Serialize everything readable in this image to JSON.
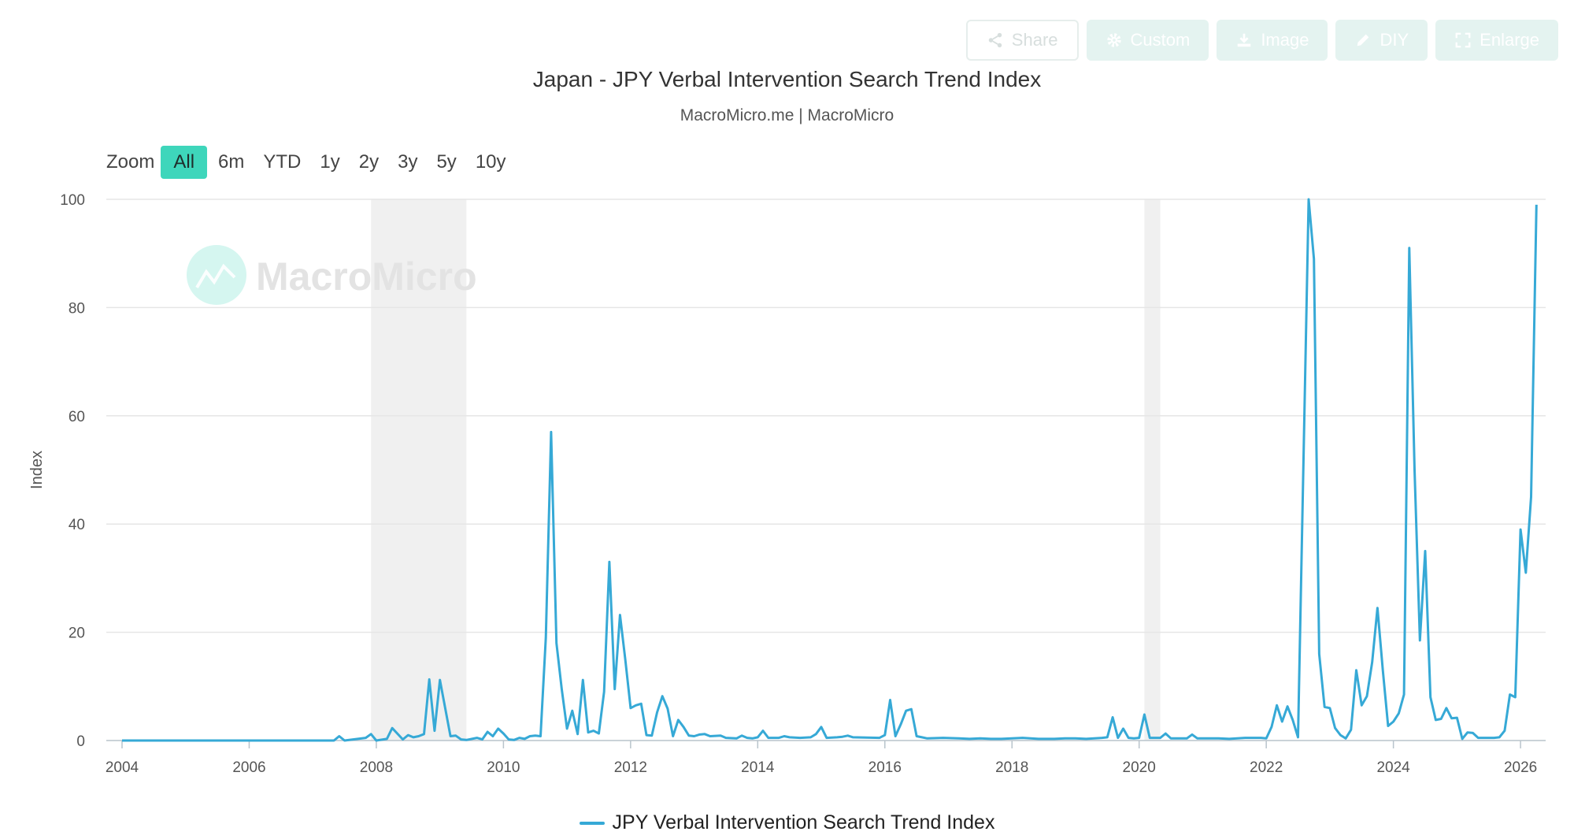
{
  "toolbar": {
    "share": "Share",
    "custom": "Custom",
    "image": "Image",
    "diy": "DIY",
    "enlarge": "Enlarge"
  },
  "zoom": {
    "label": "Zoom",
    "options": [
      "All",
      "6m",
      "YTD",
      "1y",
      "2y",
      "3y",
      "5y",
      "10y"
    ],
    "selected": "All"
  },
  "watermark": "MacroMicro",
  "colors": {
    "line": "#36a9d6",
    "accent": "#3ed6bb",
    "recession": "#f0f0f0"
  },
  "chart_data": {
    "type": "line",
    "title": "Japan - JPY Verbal Intervention Search Trend Index",
    "subtitle": "MacroMicro.me | MacroMicro",
    "ylabel": "Index",
    "xlabel": "",
    "ylim": [
      0,
      100
    ],
    "yticks": [
      "0",
      "20",
      "40",
      "60",
      "80",
      "100"
    ],
    "xlim": [
      "2004-01",
      "2026-05"
    ],
    "xticks": [
      "2004",
      "2006",
      "2008",
      "2010",
      "2012",
      "2014",
      "2016",
      "2018",
      "2020",
      "2022",
      "2024",
      "2026"
    ],
    "grid": true,
    "legend_position": "bottom-center",
    "shaded_periods": [
      [
        "2007-12",
        "2009-06"
      ],
      [
        "2020-02",
        "2020-05"
      ]
    ],
    "series": [
      {
        "name": "JPY Verbal Intervention Search Trend Index",
        "points": [
          [
            "2004-01",
            0
          ],
          [
            "2007-05",
            0
          ],
          [
            "2007-06",
            0.8
          ],
          [
            "2007-07",
            0
          ],
          [
            "2007-11",
            0.5
          ],
          [
            "2007-12",
            1.2
          ],
          [
            "2008-01",
            0
          ],
          [
            "2008-03",
            0.3
          ],
          [
            "2008-04",
            2.3
          ],
          [
            "2008-06",
            0.2
          ],
          [
            "2008-07",
            1.0
          ],
          [
            "2008-08",
            0.6
          ],
          [
            "2008-09",
            0.8
          ],
          [
            "2008-10",
            1.2
          ],
          [
            "2008-11",
            11.3
          ],
          [
            "2008-12",
            1.8
          ],
          [
            "2009-01",
            11.2
          ],
          [
            "2009-02",
            6.0
          ],
          [
            "2009-03",
            0.8
          ],
          [
            "2009-04",
            0.9
          ],
          [
            "2009-05",
            0.2
          ],
          [
            "2009-06",
            0.1
          ],
          [
            "2009-08",
            0.5
          ],
          [
            "2009-09",
            0.2
          ],
          [
            "2009-10",
            1.6
          ],
          [
            "2009-11",
            0.8
          ],
          [
            "2009-12",
            2.2
          ],
          [
            "2010-01",
            1.3
          ],
          [
            "2010-02",
            0.2
          ],
          [
            "2010-03",
            0.1
          ],
          [
            "2010-04",
            0.5
          ],
          [
            "2010-05",
            0.3
          ],
          [
            "2010-06",
            0.8
          ],
          [
            "2010-07",
            0.9
          ],
          [
            "2010-08",
            0.8
          ],
          [
            "2010-09",
            19.0
          ],
          [
            "2010-10",
            57.0
          ],
          [
            "2010-11",
            18.0
          ],
          [
            "2010-12",
            9.5
          ],
          [
            "2011-01",
            2.2
          ],
          [
            "2011-02",
            5.5
          ],
          [
            "2011-03",
            1.2
          ],
          [
            "2011-04",
            11.2
          ],
          [
            "2011-05",
            1.5
          ],
          [
            "2011-06",
            1.8
          ],
          [
            "2011-07",
            1.3
          ],
          [
            "2011-08",
            9.0
          ],
          [
            "2011-09",
            33.0
          ],
          [
            "2011-10",
            9.5
          ],
          [
            "2011-11",
            23.2
          ],
          [
            "2011-12",
            15.0
          ],
          [
            "2012-01",
            6.0
          ],
          [
            "2012-02",
            6.5
          ],
          [
            "2012-03",
            6.8
          ],
          [
            "2012-04",
            1.0
          ],
          [
            "2012-05",
            0.9
          ],
          [
            "2012-06",
            5.2
          ],
          [
            "2012-07",
            8.2
          ],
          [
            "2012-08",
            5.9
          ],
          [
            "2012-09",
            0.8
          ],
          [
            "2012-10",
            3.8
          ],
          [
            "2012-11",
            2.5
          ],
          [
            "2012-12",
            0.9
          ],
          [
            "2013-01",
            0.8
          ],
          [
            "2013-02",
            1.1
          ],
          [
            "2013-03",
            1.2
          ],
          [
            "2013-04",
            0.8
          ],
          [
            "2013-06",
            0.9
          ],
          [
            "2013-07",
            0.5
          ],
          [
            "2013-09",
            0.4
          ],
          [
            "2013-10",
            0.9
          ],
          [
            "2013-11",
            0.5
          ],
          [
            "2013-12",
            0.4
          ],
          [
            "2014-01",
            0.6
          ],
          [
            "2014-02",
            1.8
          ],
          [
            "2014-03",
            0.5
          ],
          [
            "2014-05",
            0.5
          ],
          [
            "2014-06",
            0.8
          ],
          [
            "2014-07",
            0.6
          ],
          [
            "2014-09",
            0.5
          ],
          [
            "2014-11",
            0.6
          ],
          [
            "2014-12",
            1.2
          ],
          [
            "2015-01",
            2.5
          ],
          [
            "2015-02",
            0.5
          ],
          [
            "2015-04",
            0.6
          ],
          [
            "2015-05",
            0.7
          ],
          [
            "2015-06",
            0.9
          ],
          [
            "2015-07",
            0.6
          ],
          [
            "2015-12",
            0.5
          ],
          [
            "2016-01",
            1.0
          ],
          [
            "2016-02",
            7.5
          ],
          [
            "2016-03",
            0.8
          ],
          [
            "2016-04",
            3.0
          ],
          [
            "2016-05",
            5.5
          ],
          [
            "2016-06",
            5.8
          ],
          [
            "2016-07",
            0.8
          ],
          [
            "2016-08",
            0.6
          ],
          [
            "2016-09",
            0.4
          ],
          [
            "2016-12",
            0.5
          ],
          [
            "2017-03",
            0.4
          ],
          [
            "2017-05",
            0.3
          ],
          [
            "2017-07",
            0.4
          ],
          [
            "2017-09",
            0.3
          ],
          [
            "2017-11",
            0.3
          ],
          [
            "2018-01",
            0.4
          ],
          [
            "2018-03",
            0.5
          ],
          [
            "2018-06",
            0.3
          ],
          [
            "2018-09",
            0.3
          ],
          [
            "2018-11",
            0.4
          ],
          [
            "2019-01",
            0.4
          ],
          [
            "2019-03",
            0.3
          ],
          [
            "2019-06",
            0.5
          ],
          [
            "2019-07",
            0.6
          ],
          [
            "2019-08",
            4.3
          ],
          [
            "2019-09",
            0.5
          ],
          [
            "2019-10",
            2.2
          ],
          [
            "2019-11",
            0.5
          ],
          [
            "2019-12",
            0.4
          ],
          [
            "2020-01",
            0.5
          ],
          [
            "2020-02",
            4.8
          ],
          [
            "2020-03",
            0.5
          ],
          [
            "2020-05",
            0.5
          ],
          [
            "2020-06",
            1.3
          ],
          [
            "2020-07",
            0.4
          ],
          [
            "2020-10",
            0.4
          ],
          [
            "2020-11",
            1.1
          ],
          [
            "2020-12",
            0.4
          ],
          [
            "2021-04",
            0.4
          ],
          [
            "2021-06",
            0.3
          ],
          [
            "2021-09",
            0.5
          ],
          [
            "2021-12",
            0.5
          ],
          [
            "2022-01",
            0.4
          ],
          [
            "2022-02",
            2.5
          ],
          [
            "2022-03",
            6.5
          ],
          [
            "2022-04",
            3.5
          ],
          [
            "2022-05",
            6.3
          ],
          [
            "2022-06",
            3.8
          ],
          [
            "2022-07",
            0.6
          ],
          [
            "2022-09",
            100.0
          ],
          [
            "2022-10",
            89.0
          ],
          [
            "2022-11",
            16.0
          ],
          [
            "2022-12",
            6.2
          ],
          [
            "2023-01",
            6.0
          ],
          [
            "2023-02",
            2.3
          ],
          [
            "2023-03",
            1.0
          ],
          [
            "2023-04",
            0.4
          ],
          [
            "2023-05",
            2.0
          ],
          [
            "2023-06",
            13.0
          ],
          [
            "2023-07",
            6.5
          ],
          [
            "2023-08",
            8.2
          ],
          [
            "2023-09",
            14.5
          ],
          [
            "2023-10",
            24.5
          ],
          [
            "2023-11",
            13.0
          ],
          [
            "2023-12",
            2.7
          ],
          [
            "2024-01",
            3.5
          ],
          [
            "2024-02",
            5.0
          ],
          [
            "2024-03",
            8.5
          ],
          [
            "2024-04",
            91.0
          ],
          [
            "2024-05",
            50.0
          ],
          [
            "2024-06",
            18.5
          ],
          [
            "2024-07",
            35.0
          ],
          [
            "2024-08",
            8.0
          ],
          [
            "2024-09",
            3.8
          ],
          [
            "2024-10",
            4.0
          ],
          [
            "2024-11",
            6.0
          ],
          [
            "2024-12",
            4.1
          ],
          [
            "2025-01",
            4.2
          ],
          [
            "2025-02",
            0.3
          ],
          [
            "2025-03",
            1.5
          ],
          [
            "2025-04",
            1.4
          ],
          [
            "2025-05",
            0.5
          ],
          [
            "2025-06",
            0.5
          ],
          [
            "2025-07",
            0.5
          ],
          [
            "2025-08",
            0.5
          ],
          [
            "2025-09",
            0.6
          ],
          [
            "2025-10",
            1.8
          ],
          [
            "2025-11",
            8.5
          ],
          [
            "2025-12",
            8.0
          ],
          [
            "2026-01",
            39.0
          ],
          [
            "2026-02",
            31.0
          ],
          [
            "2026-03",
            45.0
          ],
          [
            "2026-04",
            99.0
          ]
        ]
      }
    ]
  }
}
